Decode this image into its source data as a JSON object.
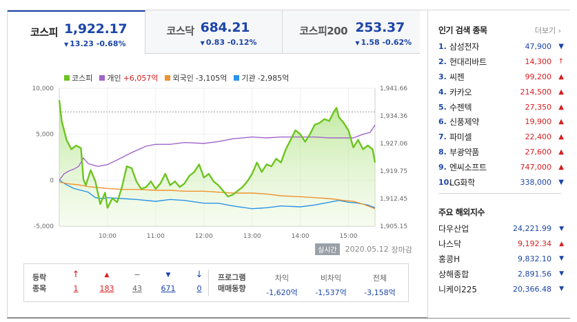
{
  "tabs": [
    {
      "name": "코스피",
      "value": "1,922.17",
      "change": "13.23 -0.68%",
      "arrow": "▼"
    },
    {
      "name": "코스닥",
      "value": "684.21",
      "change": "0.83 -0.12%",
      "arrow": "▼"
    },
    {
      "name": "코스피200",
      "value": "253.37",
      "change": "1.58 -0.62%",
      "arrow": "▼"
    }
  ],
  "legend": {
    "kospi": "코스피",
    "individual": "개인",
    "individual_val": "+6,057억",
    "foreign": "외국인",
    "foreign_val": "-3,105억",
    "institution": "기관",
    "institution_val": "-2,985억"
  },
  "status": {
    "badge": "실시간",
    "date": "2020.05.12",
    "state": "장마감"
  },
  "stats": {
    "label": "등락\n종목",
    "counts": [
      {
        "icon": "↑",
        "value": "1",
        "color": "red"
      },
      {
        "icon": "▲",
        "value": "183",
        "color": "red"
      },
      {
        "icon": "‒",
        "value": "43",
        "color": "gray"
      },
      {
        "icon": "▼",
        "value": "671",
        "color": "blue"
      },
      {
        "icon": "↓",
        "value": "0",
        "color": "blue"
      }
    ],
    "program_label": "프로그램\n매매동향",
    "program": [
      {
        "head": "차익",
        "value": "-1,620억"
      },
      {
        "head": "비차익",
        "value": "-1,537억"
      },
      {
        "head": "전체",
        "value": "-3,158억"
      }
    ]
  },
  "popular": {
    "title": "인기 검색 종목",
    "more": "더보기",
    "items": [
      {
        "rank": "1.",
        "name": "삼성전자",
        "price": "47,900",
        "arrow": "▼",
        "dir": "down"
      },
      {
        "rank": "2.",
        "name": "현대리바트",
        "price": "14,300",
        "arrow": "↑",
        "dir": "up"
      },
      {
        "rank": "3.",
        "name": "씨젠",
        "price": "99,200",
        "arrow": "▲",
        "dir": "up"
      },
      {
        "rank": "4.",
        "name": "카카오",
        "price": "214,500",
        "arrow": "▲",
        "dir": "up"
      },
      {
        "rank": "5.",
        "name": "수젠텍",
        "price": "27,350",
        "arrow": "▲",
        "dir": "up"
      },
      {
        "rank": "6.",
        "name": "신풍제약",
        "price": "19,900",
        "arrow": "▲",
        "dir": "up"
      },
      {
        "rank": "7.",
        "name": "파미셀",
        "price": "22,400",
        "arrow": "▲",
        "dir": "up"
      },
      {
        "rank": "8.",
        "name": "부광약품",
        "price": "27,600",
        "arrow": "▲",
        "dir": "up"
      },
      {
        "rank": "9.",
        "name": "엔씨소프트",
        "price": "747,000",
        "arrow": "▲",
        "dir": "up"
      },
      {
        "rank": "10.",
        "name": "LG화학",
        "price": "338,000",
        "arrow": "▼",
        "dir": "down"
      }
    ]
  },
  "overseas": {
    "title": "주요 해외지수",
    "items": [
      {
        "name": "다우산업",
        "price": "24,221.99",
        "arrow": "▼",
        "dir": "down"
      },
      {
        "name": "나스닥",
        "price": "9,192.34",
        "arrow": "▲",
        "dir": "up"
      },
      {
        "name": "홍콩H",
        "price": "9,832.10",
        "arrow": "▼",
        "dir": "down"
      },
      {
        "name": "상해종합",
        "price": "2,891.56",
        "arrow": "▼",
        "dir": "down"
      },
      {
        "name": "니케이225",
        "price": "20,366.48",
        "arrow": "▼",
        "dir": "down"
      }
    ]
  },
  "colors": {
    "kospi": "#6cc51e",
    "individual": "#a065c8",
    "foreign": "#f0922f",
    "institution": "#2b93e8",
    "up": "#d61d1d",
    "down": "#1b45a8"
  },
  "chart_data": {
    "type": "line",
    "x_ticks": [
      "10:00",
      "11:00",
      "12:00",
      "13:00",
      "14:00",
      "15:00"
    ],
    "left_axis": {
      "ticks": [
        "10,000",
        "5,000",
        "0",
        "-5,000"
      ],
      "range": [
        -5000,
        10000
      ]
    },
    "right_axis": {
      "ticks": [
        "1,941.66",
        "1,934.36",
        "1,927.06",
        "1,919.75",
        "1,912.45",
        "1,905.15"
      ],
      "range": [
        1905.15,
        1941.66
      ]
    },
    "x_range": [
      9.0,
      15.55
    ],
    "reference_line": 1935.4,
    "series": [
      {
        "name": "코스피",
        "axis": "right",
        "color": "#6cc51e",
        "x": [
          9.0,
          9.05,
          9.15,
          9.25,
          9.35,
          9.45,
          9.5,
          9.55,
          9.65,
          9.75,
          9.85,
          9.95,
          10.0,
          10.1,
          10.2,
          10.3,
          10.4,
          10.5,
          10.6,
          10.7,
          10.8,
          10.9,
          11.0,
          11.1,
          11.2,
          11.3,
          11.4,
          11.5,
          11.6,
          11.7,
          11.8,
          11.9,
          12.0,
          12.1,
          12.2,
          12.3,
          12.4,
          12.5,
          12.6,
          12.7,
          12.8,
          12.9,
          13.0,
          13.1,
          13.2,
          13.3,
          13.4,
          13.5,
          13.6,
          13.7,
          13.8,
          13.9,
          14.0,
          14.1,
          14.2,
          14.3,
          14.4,
          14.5,
          14.6,
          14.7,
          14.75,
          14.8,
          14.9,
          15.0,
          15.1,
          15.2,
          15.3,
          15.4,
          15.5,
          15.55
        ],
        "y": [
          1938.5,
          1933.0,
          1928.0,
          1925.5,
          1926.5,
          1925.8,
          1917.5,
          1916.0,
          1920.0,
          1917.0,
          1911.0,
          1914.0,
          1910.0,
          1912.5,
          1911.5,
          1915.5,
          1921.0,
          1920.5,
          1917.0,
          1915.0,
          1915.5,
          1917.0,
          1915.0,
          1916.5,
          1919.0,
          1916.0,
          1917.0,
          1915.5,
          1916.5,
          1918.5,
          1919.5,
          1921.5,
          1918.0,
          1919.0,
          1917.0,
          1916.0,
          1914.5,
          1913.0,
          1913.5,
          1914.5,
          1915.5,
          1917.0,
          1919.0,
          1922.0,
          1919.5,
          1921.5,
          1921.0,
          1923.0,
          1922.0,
          1925.5,
          1928.0,
          1930.5,
          1929.5,
          1927.5,
          1929.5,
          1932.0,
          1932.5,
          1933.5,
          1933.0,
          1935.5,
          1936.5,
          1934.0,
          1932.5,
          1930.5,
          1926.0,
          1928.0,
          1925.5,
          1926.5,
          1925.5,
          1922.0
        ]
      },
      {
        "name": "개인",
        "axis": "left",
        "color": "#a065c8",
        "x": [
          9.0,
          9.1,
          9.2,
          9.3,
          9.4,
          9.5,
          9.6,
          9.8,
          10.0,
          10.2,
          10.5,
          10.8,
          11.0,
          11.3,
          11.6,
          12.0,
          12.3,
          12.6,
          13.0,
          13.3,
          13.6,
          14.0,
          14.3,
          14.6,
          14.9,
          15.1,
          15.3,
          15.45,
          15.55
        ],
        "y": [
          0,
          700,
          1000,
          1200,
          1500,
          2400,
          1800,
          1500,
          1700,
          2200,
          3000,
          3700,
          3900,
          3900,
          4100,
          4000,
          4200,
          4500,
          4700,
          4600,
          4700,
          4700,
          4700,
          4600,
          4600,
          4600,
          5000,
          5200,
          6000
        ]
      },
      {
        "name": "외국인",
        "axis": "left",
        "color": "#f0922f",
        "x": [
          9.0,
          9.2,
          9.4,
          9.6,
          9.8,
          10.0,
          10.3,
          10.6,
          11.0,
          11.3,
          11.6,
          12.0,
          12.3,
          12.6,
          13.0,
          13.3,
          13.6,
          14.0,
          14.3,
          14.6,
          14.9,
          15.1,
          15.3,
          15.45,
          15.55
        ],
        "y": [
          -200,
          -400,
          -500,
          -700,
          -800,
          -900,
          -1000,
          -1000,
          -1100,
          -1100,
          -1200,
          -1200,
          -1300,
          -1400,
          -1400,
          -1500,
          -1700,
          -1800,
          -1900,
          -2000,
          -2200,
          -2300,
          -2600,
          -2900,
          -3100
        ]
      },
      {
        "name": "기관",
        "axis": "left",
        "color": "#2b93e8",
        "x": [
          9.0,
          9.15,
          9.3,
          9.45,
          9.6,
          9.75,
          9.9,
          10.0,
          10.3,
          10.6,
          11.0,
          11.3,
          11.6,
          12.0,
          12.3,
          12.6,
          13.0,
          13.3,
          13.6,
          14.0,
          14.3,
          14.6,
          14.8,
          15.0,
          15.2,
          15.4,
          15.55
        ],
        "y": [
          0,
          -500,
          -900,
          -1100,
          -1300,
          -1900,
          -2000,
          -1900,
          -2000,
          -2100,
          -2300,
          -2100,
          -2200,
          -2500,
          -2500,
          -2800,
          -3100,
          -3000,
          -2800,
          -2900,
          -2700,
          -2400,
          -2200,
          -2400,
          -2500,
          -2700,
          -3000
        ]
      }
    ]
  }
}
